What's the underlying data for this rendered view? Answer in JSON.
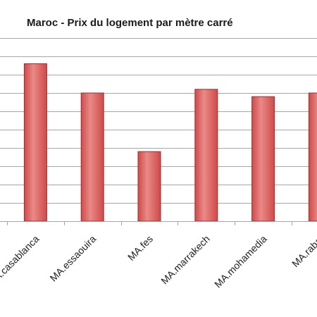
{
  "chart_data": {
    "type": "bar",
    "title": "Maroc - Prix du logement par mètre carré",
    "xlabel": "",
    "ylabel": "",
    "categories": [
      "MA.casablanca",
      "MA.essaouira",
      "MA.fes",
      "MA.marrakech",
      "MA.mohamedia",
      "MA.rabat"
    ],
    "values": [
      8.6,
      7.0,
      3.8,
      7.2,
      6.8,
      7.0
    ],
    "ylim": [
      0,
      10
    ],
    "y_tick_step": 1,
    "grid": true,
    "legend": "none",
    "colors": {
      "bar_fill": "#cf4a4a",
      "bar_highlight": "#e98a86",
      "bar_edge": "#9c2f2f",
      "grid": "#a6a6a6"
    }
  }
}
